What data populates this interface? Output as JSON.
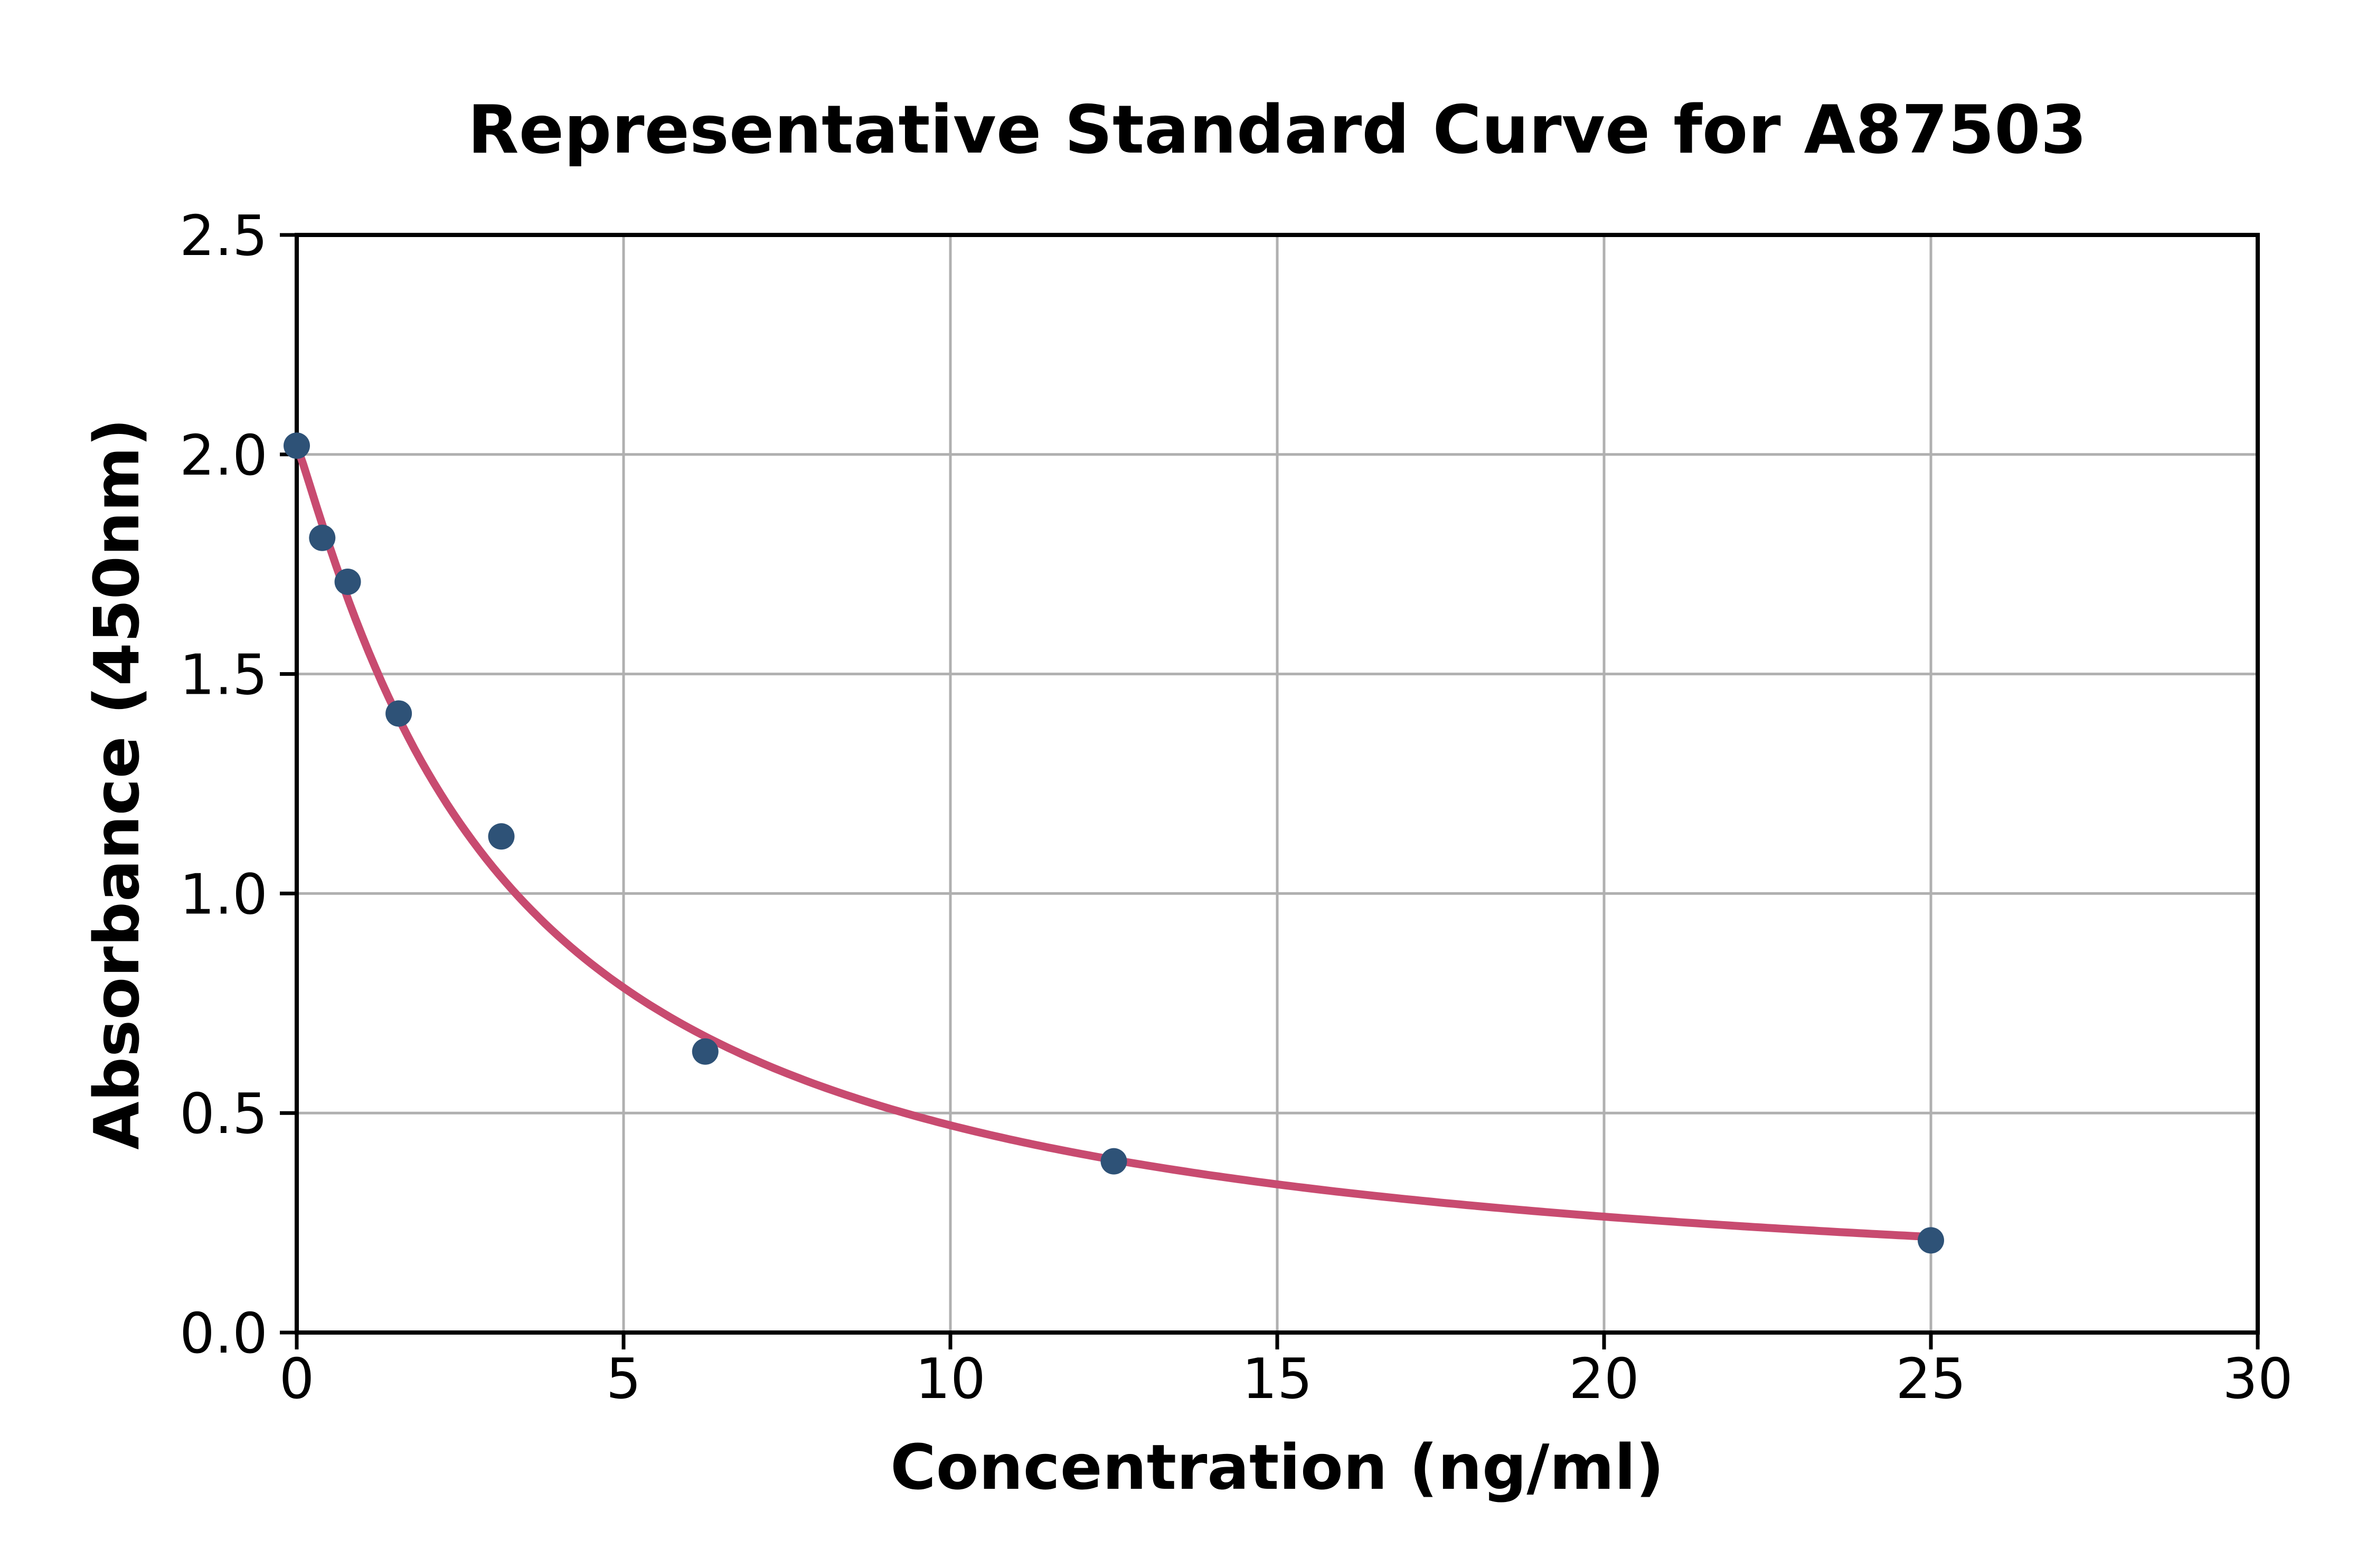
{
  "chart_data": {
    "type": "scatter",
    "title": "Representative Standard Curve for A87503",
    "xlabel": "Concentration (ng/ml)",
    "ylabel": "Absorbance (450nm)",
    "xlim": [
      0,
      30
    ],
    "ylim": [
      0,
      2.5
    ],
    "xticks": [
      0,
      5,
      10,
      15,
      20,
      25,
      30
    ],
    "xtick_labels": [
      "0",
      "5",
      "10",
      "15",
      "20",
      "25",
      "30"
    ],
    "yticks": [
      0,
      0.5,
      1.0,
      1.5,
      2.0,
      2.5
    ],
    "ytick_labels": [
      "0.0",
      "0.5",
      "1.0",
      "1.5",
      "2.0",
      "2.5"
    ],
    "grid": true,
    "legend": false,
    "points": {
      "x": [
        0,
        0.39,
        0.78,
        1.56,
        3.13,
        6.25,
        12.5,
        25
      ],
      "y": [
        2.02,
        1.81,
        1.71,
        1.41,
        1.13,
        0.64,
        0.39,
        0.21
      ]
    },
    "fit_curve": {
      "model": "4PL",
      "a": 2.02,
      "b": 1.1,
      "c": 3.2,
      "d": 0.03,
      "x_start": 0,
      "x_end": 25
    },
    "colors": {
      "points": "#2e5277",
      "curve": "#c84b70",
      "grid": "#b0b0b0",
      "axes": "#000000",
      "background": "#ffffff"
    }
  }
}
